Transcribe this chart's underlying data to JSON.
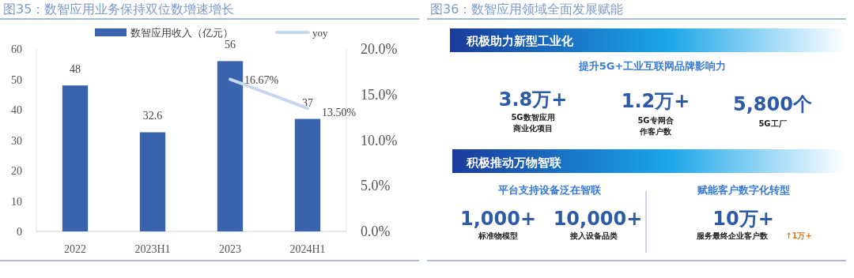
{
  "chart_data": [
    {
      "type": "bar",
      "title": "图35：数智应用业务保持双位数增速增长",
      "categories": [
        "2022",
        "2023H1",
        "2023",
        "2024H1"
      ],
      "series": [
        {
          "name": "数智应用收入（亿元）",
          "type": "bar",
          "color": "#3a63ad",
          "values": [
            48,
            32.6,
            56,
            37
          ],
          "value_labels": [
            "48",
            "32.6",
            "56",
            "37"
          ]
        },
        {
          "name": "yoy",
          "type": "line",
          "axis": "y2",
          "color": "#c8d7ee",
          "values": [
            null,
            null,
            16.67,
            13.5
          ],
          "value_labels": [
            null,
            null,
            "16.67%",
            "13.50%"
          ]
        }
      ],
      "ylim": [
        0,
        60
      ],
      "yticks": [
        0,
        10,
        20,
        30,
        40,
        50,
        60
      ],
      "y2lim": [
        0,
        20
      ],
      "y2ticks": [
        {
          "value": 0,
          "label": "0.0%"
        },
        {
          "value": 5,
          "label": "5.0%"
        },
        {
          "value": 10,
          "label": "10.0%"
        },
        {
          "value": 15,
          "label": "15.0%"
        },
        {
          "value": 20,
          "label": "20.0%"
        }
      ],
      "legend": "top",
      "marker": "none",
      "line_style": "solid"
    },
    {
      "type": "other",
      "title": "图36：数智应用领域全面发展赋能",
      "annotations": [
        "积极助力新型工业化",
        "提升5G+工业互联网品牌影响力",
        "3.8万+",
        "5G数智应用商业化项目",
        "1.2万+",
        "5G专网合作客户数",
        "5,800个",
        "5G工厂",
        "积极推动万物智联",
        "平台支持设备泛在智联",
        "1,000+",
        "标准物模型",
        "10,000+",
        "接入设备品类",
        "赋能客户数字化转型",
        "10万+",
        "服务最终企业客户数",
        "↑1万+"
      ]
    }
  ]
}
